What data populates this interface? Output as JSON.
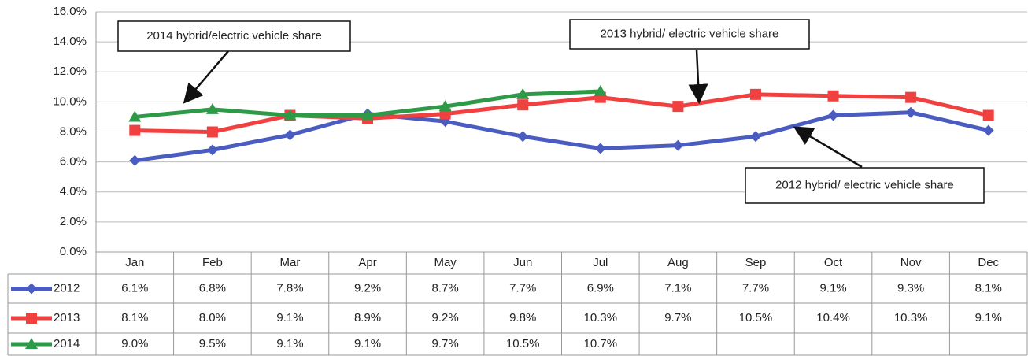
{
  "chart_data": {
    "type": "line",
    "categories": [
      "Jan",
      "Feb",
      "Mar",
      "Apr",
      "May",
      "Jun",
      "Jul",
      "Aug",
      "Sep",
      "Oct",
      "Nov",
      "Dec"
    ],
    "series": [
      {
        "name": "2012",
        "color": "#4a5cc0",
        "marker": "diamond",
        "values": [
          6.1,
          6.8,
          7.8,
          9.2,
          8.7,
          7.7,
          6.9,
          7.1,
          7.7,
          9.1,
          9.3,
          8.1
        ],
        "value_labels": [
          "6.1%",
          "6.8%",
          "7.8%",
          "9.2%",
          "8.7%",
          "7.7%",
          "6.9%",
          "7.1%",
          "7.7%",
          "9.1%",
          "9.3%",
          "8.1%"
        ]
      },
      {
        "name": "2013",
        "color": "#f04040",
        "marker": "square",
        "values": [
          8.1,
          8.0,
          9.1,
          8.9,
          9.2,
          9.8,
          10.3,
          9.7,
          10.5,
          10.4,
          10.3,
          9.1
        ],
        "value_labels": [
          "8.1%",
          "8.0%",
          "9.1%",
          "8.9%",
          "9.2%",
          "9.8%",
          "10.3%",
          "9.7%",
          "10.5%",
          "10.4%",
          "10.3%",
          "9.1%"
        ]
      },
      {
        "name": "2014",
        "color": "#2e9a48",
        "marker": "triangle",
        "values": [
          9.0,
          9.5,
          9.1,
          9.1,
          9.7,
          10.5,
          10.7,
          null,
          null,
          null,
          null,
          null
        ],
        "value_labels": [
          "9.0%",
          "9.5%",
          "9.1%",
          "9.1%",
          "9.7%",
          "10.5%",
          "10.7%",
          null,
          null,
          null,
          null,
          null
        ]
      }
    ],
    "ylim": [
      0,
      16
    ],
    "yticks": [
      {
        "value": 0,
        "label": "0.0%"
      },
      {
        "value": 2,
        "label": "2.0%"
      },
      {
        "value": 4,
        "label": "4.0%"
      },
      {
        "value": 6,
        "label": "6.0%"
      },
      {
        "value": 8,
        "label": "8.0%"
      },
      {
        "value": 10,
        "label": "10.0%"
      },
      {
        "value": 12,
        "label": "12.0%"
      },
      {
        "value": 14,
        "label": "14.0%"
      },
      {
        "value": 16,
        "label": "16.0%"
      }
    ],
    "grid": true,
    "annotations": [
      "2014 hybrid/electric vehicle share",
      "2013 hybrid/ electric vehicle share",
      "2012 hybrid/ electric vehicle share"
    ]
  }
}
